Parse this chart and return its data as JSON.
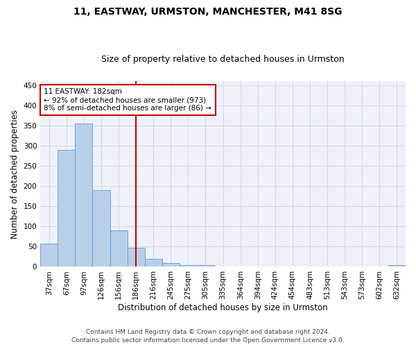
{
  "title": "11, EASTWAY, URMSTON, MANCHESTER, M41 8SG",
  "subtitle": "Size of property relative to detached houses in Urmston",
  "xlabel": "Distribution of detached houses by size in Urmston",
  "ylabel": "Number of detached properties",
  "bar_labels": [
    "37sqm",
    "67sqm",
    "97sqm",
    "126sqm",
    "156sqm",
    "186sqm",
    "216sqm",
    "245sqm",
    "275sqm",
    "305sqm",
    "335sqm",
    "364sqm",
    "394sqm",
    "424sqm",
    "454sqm",
    "483sqm",
    "513sqm",
    "543sqm",
    "573sqm",
    "602sqm",
    "632sqm"
  ],
  "bar_values": [
    58,
    290,
    355,
    190,
    90,
    47,
    20,
    9,
    5,
    4,
    1,
    0,
    0,
    1,
    0,
    0,
    0,
    0,
    0,
    0,
    4
  ],
  "bar_color": "#b8cfe8",
  "bar_edge_color": "#5b9bd5",
  "property_line_index": 5,
  "property_line_color": "#cc0000",
  "annotation_line1": "11 EASTWAY: 182sqm",
  "annotation_line2": "← 92% of detached houses are smaller (973)",
  "annotation_line3": "8% of semi-detached houses are larger (86) →",
  "annotation_box_edge_color": "#cc0000",
  "annotation_box_face_color": "#ffffff",
  "ylim": [
    0,
    460
  ],
  "yticks": [
    0,
    50,
    100,
    150,
    200,
    250,
    300,
    350,
    400,
    450
  ],
  "grid_color": "#d0d8e8",
  "background_color": "#eef2f8",
  "footer_line1": "Contains HM Land Registry data © Crown copyright and database right 2024.",
  "footer_line2": "Contains public sector information licensed under the Open Government Licence v3.0.",
  "title_fontsize": 10,
  "subtitle_fontsize": 9,
  "axis_label_fontsize": 8.5,
  "tick_fontsize": 7.5,
  "annotation_fontsize": 7.5,
  "footer_fontsize": 6.5
}
